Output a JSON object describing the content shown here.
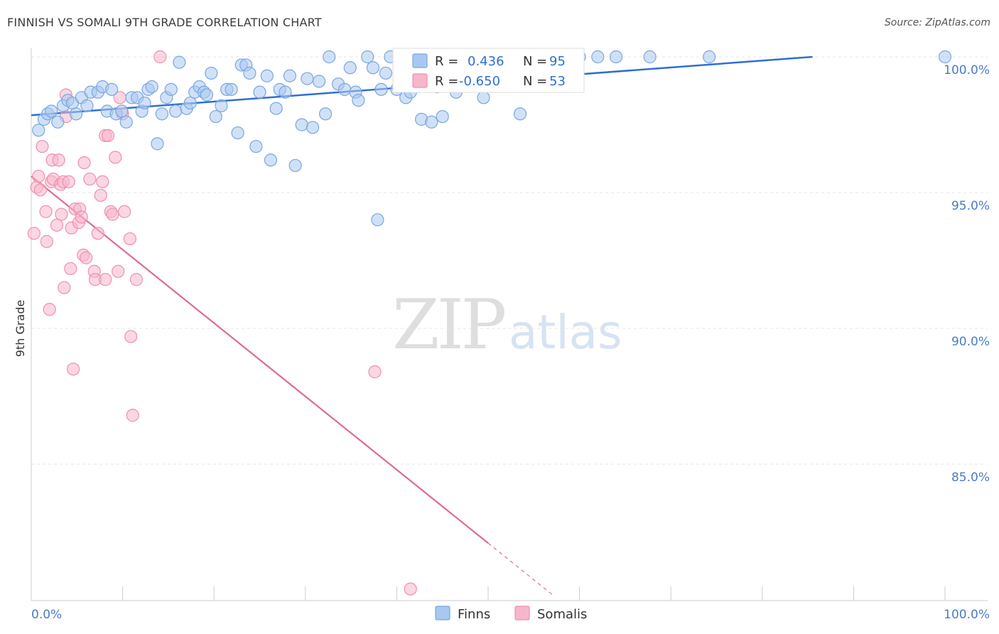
{
  "title": "FINNISH VS SOMALI 9TH GRADE CORRELATION CHART",
  "source": "Source: ZipAtlas.com",
  "watermark": {
    "zip": "ZIP",
    "atlas": "atlas"
  },
  "legend_top": {
    "rows": [
      {
        "r_label": "R =",
        "r_value": "0.436",
        "n_label": "N =",
        "n_value": "95"
      },
      {
        "r_label": "R =",
        "r_value": "-0.650",
        "n_label": "N =",
        "n_value": "53"
      }
    ]
  },
  "legend_bottom": {
    "items": [
      "Finns",
      "Somalis"
    ]
  },
  "colors": {
    "finns_fill": "#a9c8f0",
    "finns_stroke": "#7aa6e0",
    "finns_line": "#2f6fd1",
    "somalis_fill": "#f7b6cb",
    "somalis_stroke": "#ef8fae",
    "somalis_line": "#e0699a",
    "tick_text": "#4a7cc9",
    "grid": "#e4e4e4"
  },
  "chart_data": {
    "type": "scatter",
    "title": "FINNISH VS SOMALI 9TH GRADE CORRELATION CHART",
    "xlabel": "",
    "ylabel": "9th Grade",
    "xlim": [
      0,
      100
    ],
    "ylim": [
      80.2,
      100.4
    ],
    "x_tick_labels": [
      "0.0%",
      "100.0%"
    ],
    "y_ticks": [
      85,
      90,
      95,
      100
    ],
    "y_tick_labels": [
      "85.0%",
      "90.0%",
      "95.0%",
      "100.0%"
    ],
    "grid": true,
    "series": [
      {
        "name": "Finns",
        "r": 0.436,
        "n": 95,
        "trend": {
          "x": [
            0,
            85.5
          ],
          "y": [
            97.85,
            100.0
          ]
        },
        "points": [
          [
            0.8,
            97.3
          ],
          [
            1.4,
            97.7
          ],
          [
            1.8,
            97.9
          ],
          [
            2.2,
            98.0
          ],
          [
            2.9,
            97.6
          ],
          [
            3.5,
            98.2
          ],
          [
            4.0,
            98.4
          ],
          [
            4.5,
            98.3
          ],
          [
            4.9,
            97.9
          ],
          [
            5.5,
            98.5
          ],
          [
            6.1,
            98.2
          ],
          [
            6.5,
            98.7
          ],
          [
            7.3,
            98.7
          ],
          [
            7.8,
            98.9
          ],
          [
            8.3,
            98.0
          ],
          [
            8.8,
            98.8
          ],
          [
            9.3,
            97.9
          ],
          [
            9.9,
            98.0
          ],
          [
            10.4,
            97.6
          ],
          [
            11.0,
            98.5
          ],
          [
            11.6,
            98.5
          ],
          [
            12.1,
            98.0
          ],
          [
            12.4,
            98.3
          ],
          [
            12.8,
            98.8
          ],
          [
            13.2,
            98.9
          ],
          [
            13.8,
            96.8
          ],
          [
            14.3,
            97.9
          ],
          [
            14.8,
            98.5
          ],
          [
            15.3,
            98.8
          ],
          [
            15.8,
            98.0
          ],
          [
            16.2,
            99.8
          ],
          [
            17.0,
            98.1
          ],
          [
            17.4,
            98.3
          ],
          [
            17.9,
            98.7
          ],
          [
            18.4,
            98.9
          ],
          [
            18.9,
            98.7
          ],
          [
            19.2,
            98.6
          ],
          [
            19.7,
            99.4
          ],
          [
            20.2,
            97.8
          ],
          [
            20.8,
            98.2
          ],
          [
            21.4,
            98.8
          ],
          [
            21.9,
            98.8
          ],
          [
            22.6,
            97.2
          ],
          [
            23.0,
            99.7
          ],
          [
            23.5,
            99.7
          ],
          [
            23.9,
            99.4
          ],
          [
            24.6,
            96.7
          ],
          [
            25.0,
            98.7
          ],
          [
            25.8,
            99.3
          ],
          [
            26.2,
            96.2
          ],
          [
            26.8,
            98.1
          ],
          [
            27.2,
            98.8
          ],
          [
            27.8,
            98.7
          ],
          [
            28.3,
            99.3
          ],
          [
            28.9,
            96.0
          ],
          [
            29.6,
            97.5
          ],
          [
            30.2,
            99.2
          ],
          [
            30.8,
            97.4
          ],
          [
            31.5,
            99.1
          ],
          [
            32.2,
            97.9
          ],
          [
            32.6,
            100.0
          ],
          [
            33.6,
            99.0
          ],
          [
            34.3,
            98.8
          ],
          [
            34.9,
            99.6
          ],
          [
            35.5,
            98.7
          ],
          [
            35.8,
            98.4
          ],
          [
            36.8,
            100.0
          ],
          [
            37.4,
            99.6
          ],
          [
            37.9,
            94.0
          ],
          [
            38.3,
            98.8
          ],
          [
            38.8,
            99.4
          ],
          [
            39.3,
            100.0
          ],
          [
            40.0,
            98.8
          ],
          [
            41.0,
            98.5
          ],
          [
            41.5,
            98.7
          ],
          [
            42.1,
            100.0
          ],
          [
            42.7,
            97.7
          ],
          [
            43.8,
            97.6
          ],
          [
            44.4,
            98.9
          ],
          [
            45.0,
            97.8
          ],
          [
            46.5,
            98.7
          ],
          [
            48.0,
            100.0
          ],
          [
            49.5,
            98.5
          ],
          [
            51.0,
            100.0
          ],
          [
            53.0,
            100.0
          ],
          [
            53.5,
            97.9
          ],
          [
            55.0,
            100.0
          ],
          [
            56.0,
            100.0
          ],
          [
            58.0,
            100.0
          ],
          [
            60.0,
            100.0
          ],
          [
            62.0,
            100.0
          ],
          [
            64.0,
            100.0
          ],
          [
            67.7,
            100.0
          ],
          [
            74.2,
            100.0
          ],
          [
            100.0,
            100.0
          ]
        ]
      },
      {
        "name": "Somalis",
        "r": -0.65,
        "n": 53,
        "trend": {
          "x": [
            0,
            57.0
          ],
          "y": [
            95.6,
            80.2
          ],
          "solid_until_x": 50.0
        },
        "points": [
          [
            0.3,
            93.5
          ],
          [
            0.6,
            95.2
          ],
          [
            0.8,
            95.6
          ],
          [
            1.0,
            95.1
          ],
          [
            1.2,
            96.7
          ],
          [
            1.6,
            94.3
          ],
          [
            1.7,
            93.2
          ],
          [
            2.0,
            90.7
          ],
          [
            2.2,
            95.4
          ],
          [
            2.3,
            96.2
          ],
          [
            2.4,
            95.5
          ],
          [
            2.8,
            93.8
          ],
          [
            3.0,
            96.2
          ],
          [
            3.2,
            95.3
          ],
          [
            3.3,
            94.2
          ],
          [
            3.5,
            95.4
          ],
          [
            3.6,
            91.5
          ],
          [
            3.8,
            98.6
          ],
          [
            3.8,
            97.8
          ],
          [
            4.1,
            95.4
          ],
          [
            4.3,
            92.2
          ],
          [
            4.4,
            93.7
          ],
          [
            4.6,
            88.5
          ],
          [
            4.8,
            94.4
          ],
          [
            5.2,
            93.9
          ],
          [
            5.3,
            94.4
          ],
          [
            5.5,
            94.1
          ],
          [
            5.7,
            92.7
          ],
          [
            5.8,
            96.1
          ],
          [
            6.0,
            92.6
          ],
          [
            6.4,
            95.5
          ],
          [
            6.9,
            92.1
          ],
          [
            7.0,
            91.8
          ],
          [
            7.3,
            93.5
          ],
          [
            7.6,
            94.9
          ],
          [
            7.8,
            95.4
          ],
          [
            8.1,
            91.8
          ],
          [
            8.1,
            97.1
          ],
          [
            8.4,
            97.1
          ],
          [
            8.7,
            94.3
          ],
          [
            8.9,
            94.2
          ],
          [
            9.2,
            96.3
          ],
          [
            9.5,
            92.1
          ],
          [
            9.7,
            98.5
          ],
          [
            10.0,
            97.9
          ],
          [
            10.2,
            94.3
          ],
          [
            10.8,
            93.3
          ],
          [
            10.9,
            89.7
          ],
          [
            11.1,
            86.8
          ],
          [
            11.5,
            91.8
          ],
          [
            14.1,
            100.0
          ],
          [
            37.6,
            88.4
          ],
          [
            41.5,
            80.4
          ]
        ]
      }
    ]
  }
}
